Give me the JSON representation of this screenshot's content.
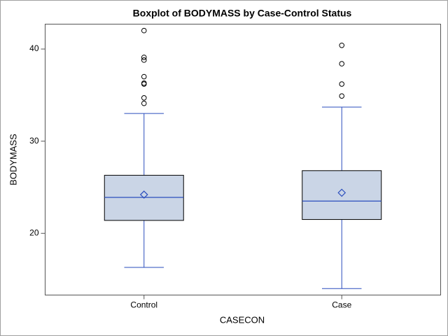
{
  "chart_data": {
    "type": "box",
    "title": "Boxplot of BODYMASS by Case-Control Status",
    "x_label": "CASECON",
    "y_label": "BODYMASS",
    "categories": [
      "Control",
      "Case"
    ],
    "boxes": [
      {
        "whisker_low": 16.3,
        "q1": 21.4,
        "median": 23.9,
        "q3": 26.3,
        "whisker_high": 33.0,
        "mean": 24.2,
        "outliers": [
          42.0,
          39.1,
          38.8,
          37.0,
          36.3,
          36.2,
          34.7,
          34.1
        ]
      },
      {
        "whisker_low": 14.0,
        "q1": 21.5,
        "median": 23.5,
        "q3": 26.8,
        "whisker_high": 33.7,
        "mean": 24.4,
        "outliers": [
          40.4,
          38.4,
          36.2,
          34.9
        ]
      }
    ],
    "box_fill": "#cad5e6",
    "line_color": "#2a4dbd",
    "box_edge": "#000000",
    "ylim": [
      13.3,
      42.7
    ],
    "yticks": [
      20,
      30,
      40
    ]
  }
}
